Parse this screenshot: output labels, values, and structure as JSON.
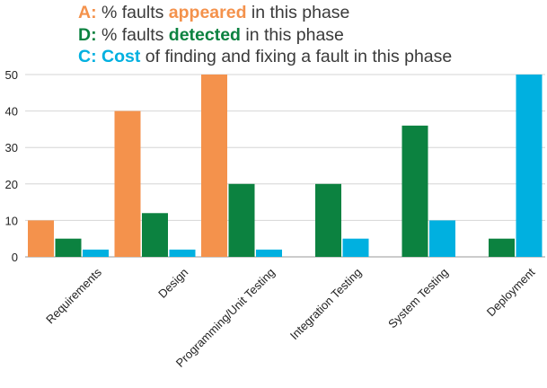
{
  "legend": [
    {
      "key": "A:",
      "text_before": " % faults ",
      "emphasis": "appeared",
      "text_after": " in this phase",
      "color": "#f4924c"
    },
    {
      "key": "D:",
      "text_before": " % faults ",
      "emphasis": "detected",
      "text_after": " in this phase",
      "color": "#0c8240"
    },
    {
      "key": "C:",
      "text_before": " ",
      "emphasis": "Cost",
      "text_after": " of finding and fixing a fault in this phase",
      "color": "#00b0e0"
    }
  ],
  "chart_data": {
    "type": "bar",
    "categories": [
      "Requirements",
      "Design",
      "Programming/Unit Testing",
      "Integration Testing",
      "System Testing",
      "Deployment"
    ],
    "series": [
      {
        "name": "A",
        "color": "#f4924c",
        "values": [
          10,
          40,
          50,
          0,
          0,
          0
        ]
      },
      {
        "name": "D",
        "color": "#0c8240",
        "values": [
          5,
          12,
          20,
          20,
          36,
          5
        ]
      },
      {
        "name": "C",
        "color": "#00b0e0",
        "values": [
          2,
          2,
          2,
          5,
          10,
          50
        ]
      }
    ],
    "ylim": [
      0,
      50
    ],
    "yticks": [
      0,
      10,
      20,
      30,
      40,
      50
    ],
    "grid": true,
    "title": "",
    "xlabel": "",
    "ylabel": ""
  }
}
